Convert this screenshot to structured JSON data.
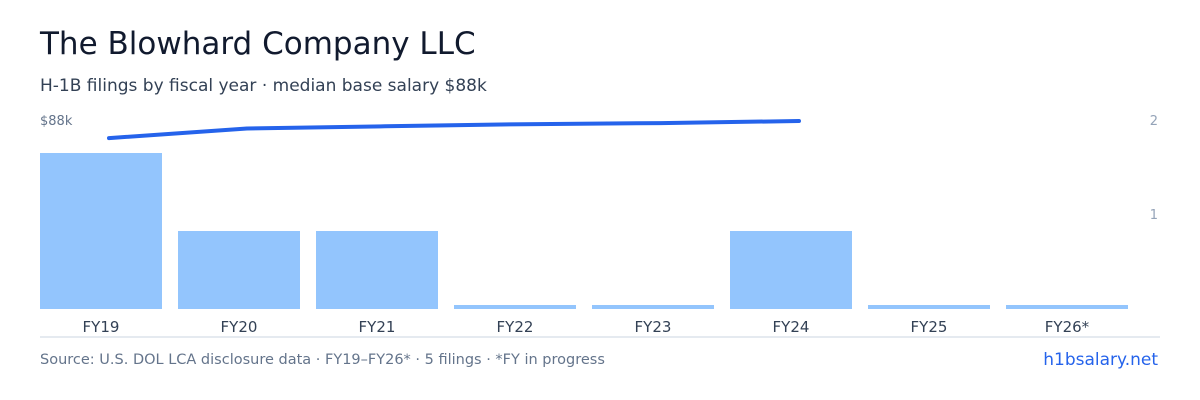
{
  "header": {
    "title": "The Blowhard Company LLC",
    "subtitle": "H-1B filings by fiscal year · median base salary $88k"
  },
  "footer": {
    "source": "Source: U.S. DOL LCA disclosure data · FY19–FY26* · 5 filings · *FY in progress",
    "brand": "h1bsalary.net"
  },
  "colors": {
    "bar": "#93c5fd",
    "line": "#2563eb",
    "axis": "#cbd5e1",
    "tick_text": "#94a3b8",
    "category_text": "#334155"
  },
  "chart_data": {
    "type": "bar",
    "categories": [
      "FY19",
      "FY20",
      "FY21",
      "FY22",
      "FY23",
      "FY24",
      "FY25",
      "FY26*"
    ],
    "series": [
      {
        "type": "bar",
        "axis": "right",
        "values": [
          2,
          1,
          1,
          0,
          0,
          1,
          0,
          0
        ]
      },
      {
        "type": "line",
        "axis": "left",
        "values": [
          80000,
          84500,
          85500,
          86500,
          87000,
          88000,
          null,
          null
        ]
      }
    ],
    "left_axis": {
      "label": "$88k",
      "ylim": [
        0,
        88000
      ]
    },
    "right_axis": {
      "ticks": [
        "1",
        "2"
      ],
      "ylim": [
        0,
        2
      ]
    },
    "grid": false
  }
}
